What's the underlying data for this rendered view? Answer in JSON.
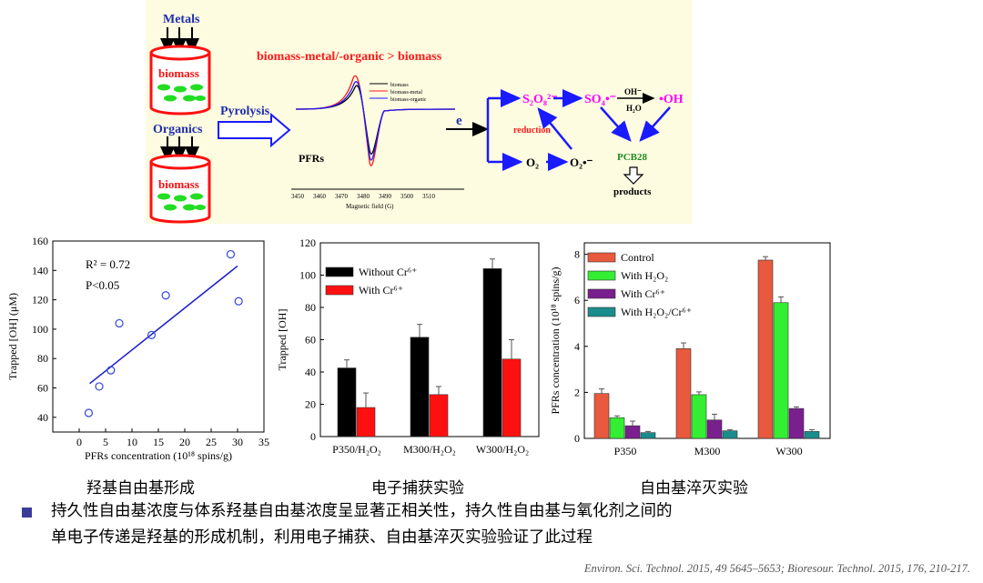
{
  "schematic": {
    "metals_label": "Metals",
    "organics_label": "Organics",
    "biomass_label_top": "biomass",
    "biomass_label_bottom": "biomass",
    "pyrolysis_label": "Pyrolysis",
    "headline": "biomass-metal/-organic > biomass",
    "epr_legend": [
      "biomass",
      "biomass-metal",
      "biomass-organic"
    ],
    "pfrs_label": "PFRs",
    "epr_x_ticks": [
      "3450",
      "3460",
      "3470",
      "3480",
      "3490",
      "3500",
      "3510"
    ],
    "epr_x_label": "Magnetic field (G)",
    "electron": "e",
    "s2o8": "S₂O₈²⁻",
    "so4": "SO₄•⁻",
    "oh_minus": "OH⁻",
    "h2o": "H₂O",
    "oh_radical": "•OH",
    "reduction": "reduction",
    "o2": "O₂",
    "o2_radical": "O₂•⁻",
    "pcb28": "PCB28",
    "products": "products",
    "colors": {
      "accent_red": "#ff1a1a",
      "arrow_blue": "#1a1aff",
      "magenta": "#ff00ff",
      "green": "#1e8c1e"
    }
  },
  "captions": {
    "chart1": "羟基自由基形成",
    "chart2": "电子捕获实验",
    "chart3": "自由基淬灭实验"
  },
  "bullet": {
    "line1": "持久性自由基浓度与体系羟基自由基浓度呈显著正相关性，持久性自由基与氧化剂之间的",
    "line2": "单电子传递是羟基的形成机制，利用电子捕获、自由基淬灭实验验证了此过程"
  },
  "reference": "Environ. Sci. Technol. 2015, 49 5645–5653; Bioresour. Technol. 2015, 176, 210-217.",
  "chart_data": [
    {
      "type": "scatter",
      "title": "",
      "xlabel": "PFRs concentration (10¹⁸ spins/g)",
      "ylabel": "Trapped [OH] (μM)",
      "xlim": [
        -5,
        35
      ],
      "ylim": [
        30,
        160
      ],
      "x_ticks": [
        0,
        5,
        10,
        15,
        20,
        25,
        30,
        35
      ],
      "y_ticks": [
        40,
        60,
        80,
        100,
        120,
        140,
        160
      ],
      "x": [
        1.8,
        3.8,
        6.0,
        7.6,
        13.7,
        16.4,
        28.7,
        30.2
      ],
      "y": [
        43,
        61,
        72,
        104,
        96,
        123,
        151,
        119
      ],
      "fit_line": {
        "x": [
          2,
          30
        ],
        "y": [
          63,
          143
        ]
      },
      "annotations": [
        "R² = 0.72",
        "P<0.05"
      ]
    },
    {
      "type": "bar",
      "title": "",
      "xlabel": "",
      "ylabel": "Trapped [OH]",
      "ylim": [
        0,
        120
      ],
      "y_ticks": [
        0,
        20,
        40,
        60,
        80,
        100,
        120
      ],
      "categories": [
        "P350/H₂O₂",
        "M300/H₂O₂",
        "W300/H₂O₂"
      ],
      "series": [
        {
          "name": "Without Cr⁶⁺",
          "color": "#000000",
          "values": [
            42.5,
            61.5,
            104
          ],
          "errors": [
            5,
            8,
            6
          ]
        },
        {
          "name": "With Cr⁶⁺",
          "color": "#ff1010",
          "values": [
            18,
            26,
            48
          ],
          "errors": [
            9,
            5,
            12
          ]
        }
      ],
      "legend": "top-left"
    },
    {
      "type": "bar",
      "title": "",
      "xlabel": "",
      "ylabel": "PFRs concentration (10¹⁸ spins/g)",
      "ylim": [
        0,
        8.5
      ],
      "y_ticks": [
        0,
        2,
        4,
        6,
        8
      ],
      "categories": [
        "P350",
        "M300",
        "W300"
      ],
      "series": [
        {
          "name": "Control",
          "color": "#e8593e",
          "values": [
            1.95,
            3.9,
            7.75
          ],
          "errors": [
            0.2,
            0.25,
            0.15
          ]
        },
        {
          "name": "With H₂O₂",
          "color": "#33ee33",
          "values": [
            0.9,
            1.9,
            5.9
          ],
          "errors": [
            0.08,
            0.12,
            0.25
          ]
        },
        {
          "name": "With Cr⁶⁺",
          "color": "#7a1f8e",
          "values": [
            0.55,
            0.8,
            1.3
          ],
          "errors": [
            0.2,
            0.25,
            0.07
          ]
        },
        {
          "name": "With H₂O₂/Cr⁶⁺",
          "color": "#1a8c8c",
          "values": [
            0.25,
            0.33,
            0.3
          ],
          "errors": [
            0.05,
            0.05,
            0.08
          ]
        }
      ],
      "legend": "top-left"
    }
  ]
}
